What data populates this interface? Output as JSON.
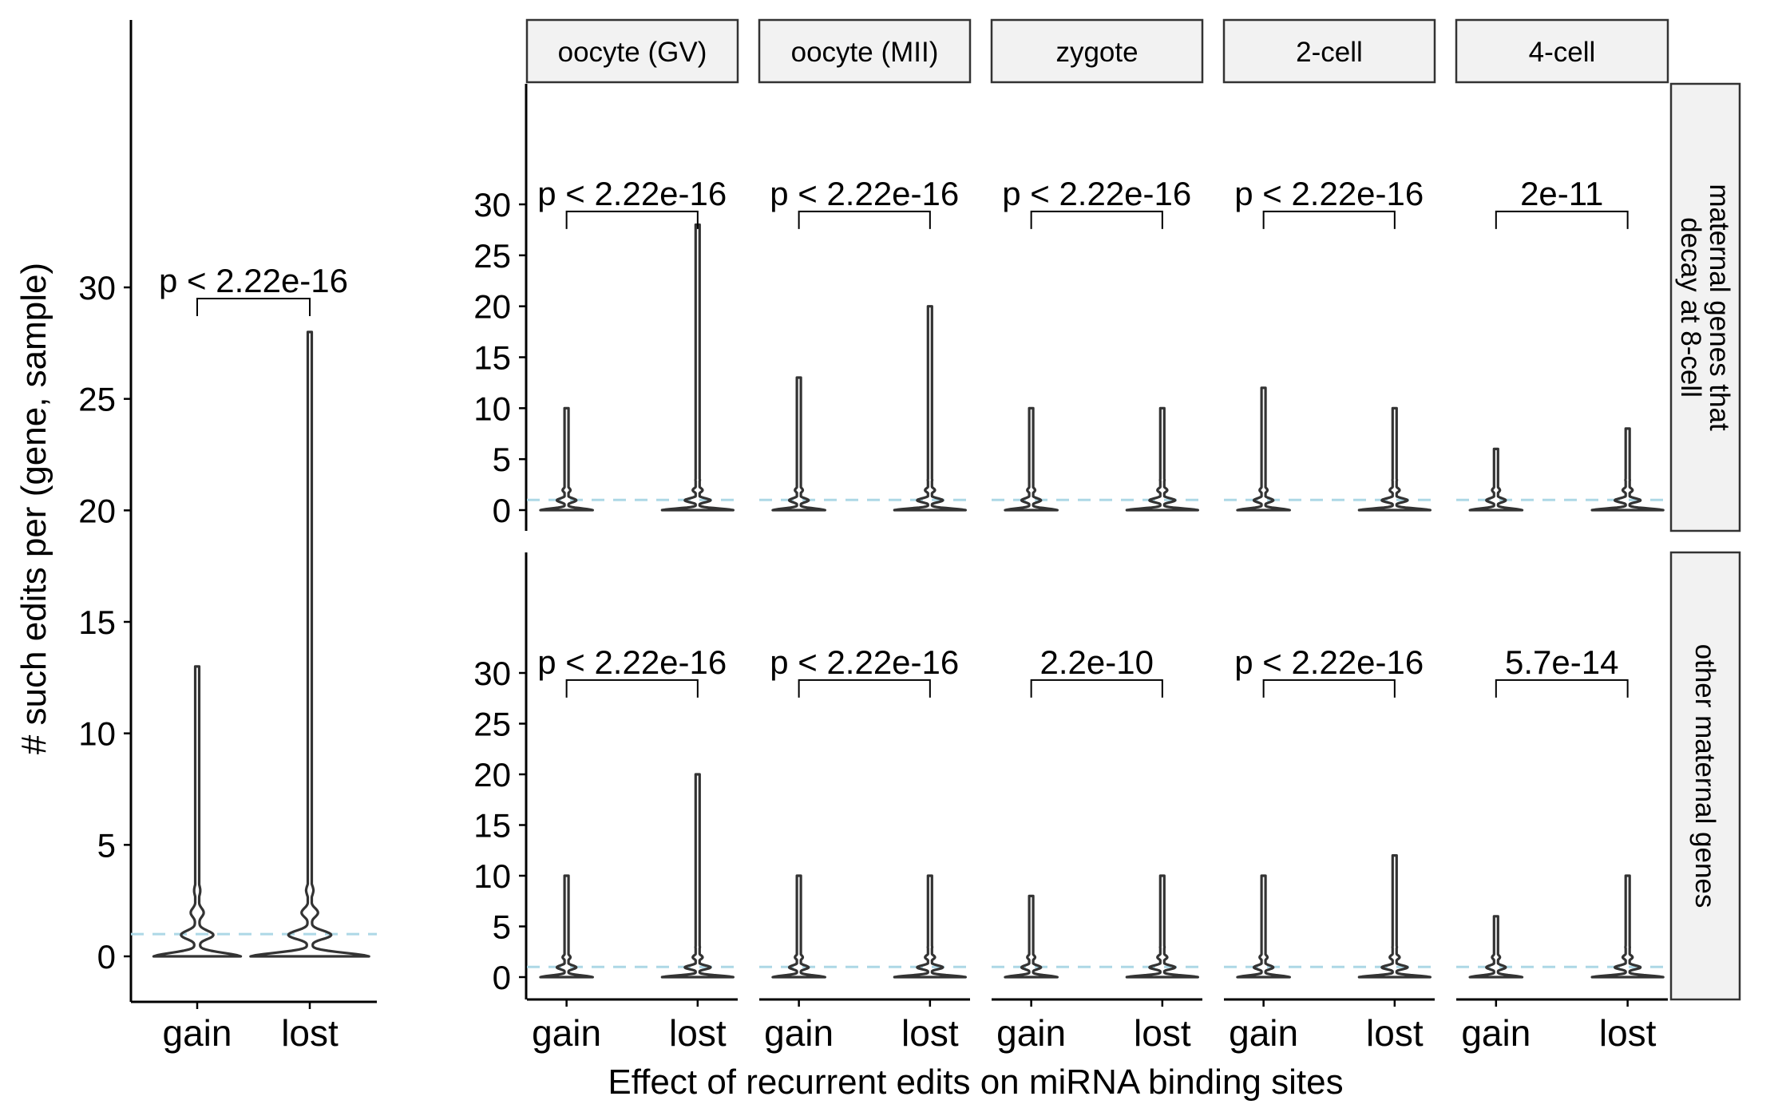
{
  "chart_data": [
    {
      "type": "violin",
      "panel": "all",
      "categories": [
        "gain",
        "lost"
      ],
      "ylabel": "# such edits per (gene, sample)",
      "yticks": [
        0,
        5,
        10,
        15,
        20,
        25,
        30
      ],
      "reference_line": 1,
      "reference_color": "#add8e6",
      "comparison": {
        "label": "p < 2.22e-16",
        "between": [
          "gain",
          "lost"
        ]
      },
      "max_values": {
        "gain": 13,
        "lost": 28
      }
    },
    {
      "type": "violin",
      "panel": "faceted",
      "xlabel": "Effect of recurrent edits on miRNA binding sites",
      "columns": [
        "oocyte (GV)",
        "oocyte (MII)",
        "zygote",
        "2-cell",
        "4-cell"
      ],
      "rows": [
        "maternal genes that decay at 8-cell",
        "other maternal genes"
      ],
      "row_label_lines": [
        [
          "maternal genes that",
          "decay at 8-cell"
        ],
        [
          "other maternal genes"
        ]
      ],
      "categories": [
        "gain",
        "lost"
      ],
      "yticks": [
        0,
        5,
        10,
        15,
        20,
        25,
        30
      ],
      "reference_line": 1,
      "reference_color": "#add8e6",
      "p_values": [
        [
          "p < 2.22e-16",
          "p < 2.22e-16",
          "p < 2.22e-16",
          "p < 2.22e-16",
          "2e-11"
        ],
        [
          "p < 2.22e-16",
          "p < 2.22e-16",
          "2.2e-10",
          "p < 2.22e-16",
          "5.7e-14"
        ]
      ],
      "max_values": [
        [
          {
            "gain": 10,
            "lost": 28
          },
          {
            "gain": 13,
            "lost": 20
          },
          {
            "gain": 10,
            "lost": 10
          },
          {
            "gain": 12,
            "lost": 10
          },
          {
            "gain": 6,
            "lost": 8
          }
        ],
        [
          {
            "gain": 10,
            "lost": 20
          },
          {
            "gain": 10,
            "lost": 10
          },
          {
            "gain": 8,
            "lost": 10
          },
          {
            "gain": 10,
            "lost": 12
          },
          {
            "gain": 6,
            "lost": 10
          }
        ]
      ]
    }
  ]
}
